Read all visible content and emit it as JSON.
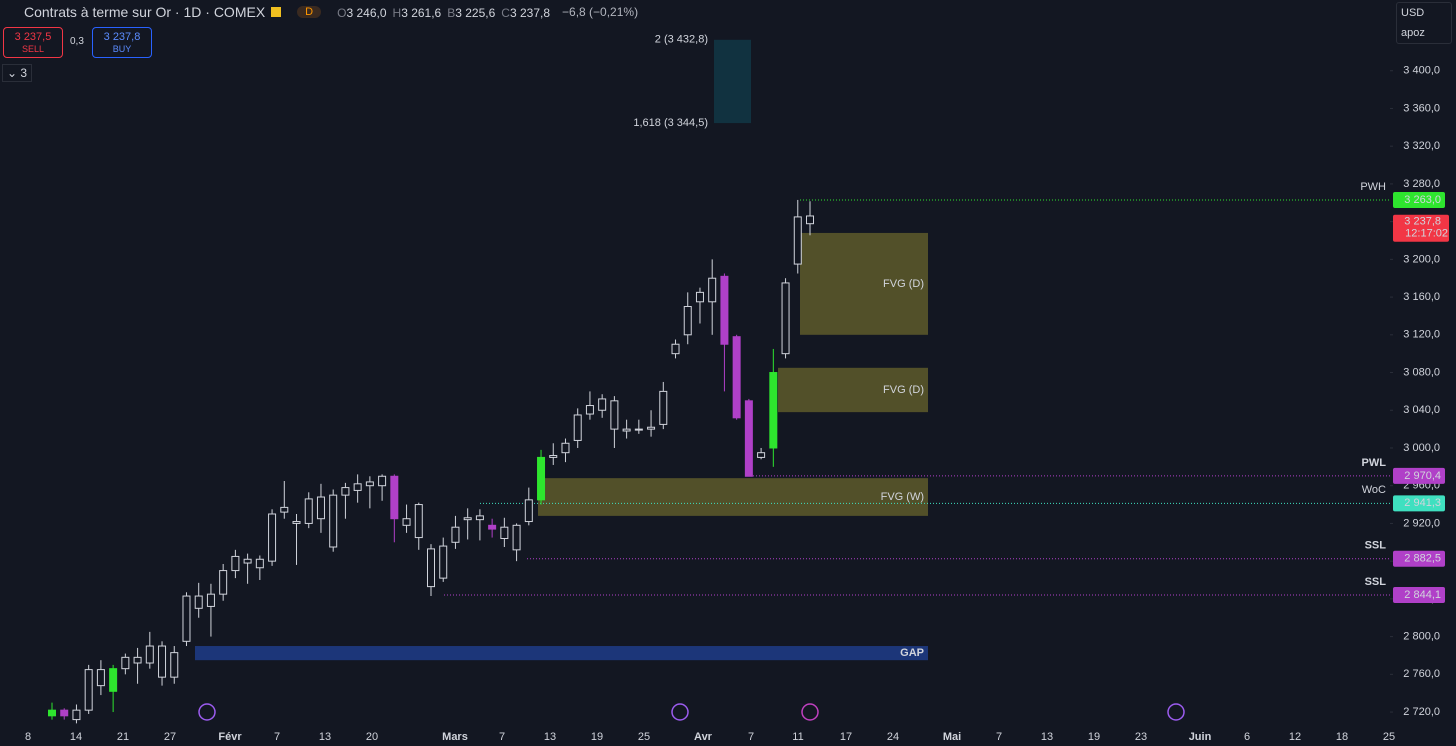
{
  "header": {
    "title": "Contrats à terme sur Or · 1D · COMEX",
    "badge": "D",
    "ohlc": [
      {
        "k": "O",
        "v": "3 246,0"
      },
      {
        "k": "H",
        "v": "3 261,6"
      },
      {
        "k": "B",
        "v": "3 225,6"
      },
      {
        "k": "C",
        "v": "3 237,8"
      }
    ],
    "change": "−6,8 (−0,21%)",
    "sell_price": "3 237,5",
    "sell": "SELL",
    "spread": "0,3",
    "buy_price": "3 237,8",
    "buy": "BUY",
    "indicators": "3",
    "currency": "USD",
    "user": "apoz"
  },
  "chart_data": {
    "type": "candlestick",
    "ylim": [
      2684,
      3475
    ],
    "yticks": [
      {
        "value": 3400,
        "label": "3 400,0"
      },
      {
        "value": 3360,
        "label": "3 360,0"
      },
      {
        "value": 3320,
        "label": "3 320,0"
      },
      {
        "value": 3280,
        "label": "3 280,0"
      },
      {
        "value": 3240,
        "label": "3 240,0"
      },
      {
        "value": 3200,
        "label": "3 200,0"
      },
      {
        "value": 3160,
        "label": "3 160,0"
      },
      {
        "value": 3120,
        "label": "3 120,0"
      },
      {
        "value": 3080,
        "label": "3 080,0"
      },
      {
        "value": 3040,
        "label": "3 040,0"
      },
      {
        "value": 3000,
        "label": "3 000,0"
      },
      {
        "value": 2960,
        "label": "2 960,0"
      },
      {
        "value": 2920,
        "label": "2 920,0"
      },
      {
        "value": 2880,
        "label": "2 880,0"
      },
      {
        "value": 2840,
        "label": "2 840,0"
      },
      {
        "value": 2800,
        "label": "2 800,0"
      },
      {
        "value": 2760,
        "label": "2 760,0"
      },
      {
        "value": 2720,
        "label": "2 720,0"
      }
    ],
    "categories": [
      "8",
      "14",
      "21",
      "27",
      "Févr",
      "7",
      "13",
      "20",
      "Mars",
      "7",
      "13",
      "19",
      "25",
      "Avr",
      "7",
      "11",
      "17",
      "24",
      "Mai",
      "7",
      "13",
      "19",
      "23",
      "Juin",
      "6",
      "12",
      "18",
      "25"
    ],
    "candles": {
      "open": [
        2716,
        2722,
        2712,
        2722,
        2765,
        2742,
        2766,
        2778,
        2772,
        2790,
        2757,
        2795,
        2843,
        2832,
        2845,
        2870,
        2878,
        2873,
        2880,
        2932,
        2920,
        2920,
        2948,
        2895,
        2950,
        2955,
        2960,
        2960,
        2970,
        2925,
        2940,
        2893,
        2862,
        2900,
        2926,
        2924,
        2918,
        2916,
        2892,
        2922,
        2945,
        2990,
        2995,
        3008,
        3036,
        3040,
        3050,
        3018,
        3020,
        3020,
        3025,
        3100,
        3120,
        3155,
        3155,
        3182,
        3118,
        3050,
        2990,
        3000,
        3100,
        3195,
        3246
      ],
      "high": [
        2730,
        2724,
        2728,
        2770,
        2775,
        2770,
        2782,
        2788,
        2805,
        2795,
        2790,
        2847,
        2857,
        2856,
        2877,
        2892,
        2888,
        2886,
        2935,
        2965,
        2930,
        2953,
        2962,
        2956,
        2963,
        2972,
        2970,
        2972,
        2972,
        2940,
        2942,
        2898,
        2905,
        2928,
        2936,
        2935,
        2925,
        2926,
        2920,
        2958,
        2998,
        3005,
        3010,
        3042,
        3060,
        3057,
        3055,
        3030,
        3030,
        3040,
        3070,
        3115,
        3165,
        3170,
        3200,
        3185,
        3120,
        3052,
        3000,
        3105,
        3180,
        3263,
        3261.6
      ],
      "low": [
        2712,
        2712,
        2708,
        2718,
        2738,
        2720,
        2760,
        2750,
        2766,
        2748,
        2750,
        2790,
        2820,
        2800,
        2838,
        2862,
        2856,
        2860,
        2875,
        2925,
        2876,
        2915,
        2910,
        2890,
        2925,
        2942,
        2936,
        2944,
        2900,
        2910,
        2892,
        2843,
        2858,
        2893,
        2903,
        2902,
        2905,
        2895,
        2880,
        2918,
        2940,
        2982,
        2985,
        3000,
        3030,
        3032,
        3000,
        3010,
        3015,
        3012,
        3020,
        3095,
        3110,
        3132,
        3120,
        3060,
        3030,
        2970,
        2988,
        2980,
        3095,
        3185,
        3225.6
      ],
      "close": [
        2722,
        2716,
        2722,
        2765,
        2748,
        2766,
        2778,
        2772,
        2790,
        2757,
        2783,
        2843,
        2830,
        2845,
        2870,
        2885,
        2882,
        2882,
        2930,
        2937,
        2922,
        2946,
        2925,
        2950,
        2958,
        2962,
        2964,
        2970,
        2925,
        2918,
        2905,
        2853,
        2896,
        2916,
        2924,
        2928,
        2914,
        2904,
        2918,
        2945,
        2990,
        2992,
        3005,
        3035,
        3045,
        3052,
        3020,
        3020,
        3020,
        3022,
        3060,
        3110,
        3150,
        3165,
        3180,
        3110,
        3032,
        2970,
        2995,
        3080,
        3175,
        3245,
        3237.8
      ],
      "colors": [
        "#2ee52e",
        "#b040c8",
        "#131722",
        "#131722",
        "#131722",
        "#2ee52e",
        "#131722",
        "#131722",
        "#131722",
        "#131722",
        "#131722",
        "#131722",
        "#131722",
        "#131722",
        "#131722",
        "#131722",
        "#131722",
        "#131722",
        "#131722",
        "#131722",
        "#131722",
        "#131722",
        "#131722",
        "#131722",
        "#131722",
        "#131722",
        "#131722",
        "#131722",
        "#b040c8",
        "#131722",
        "#131722",
        "#131722",
        "#131722",
        "#131722",
        "#131722",
        "#131722",
        "#b040c8",
        "#131722",
        "#131722",
        "#131722",
        "#2ee52e",
        "#131722",
        "#131722",
        "#131722",
        "#131722",
        "#131722",
        "#131722",
        "#131722",
        "#131722",
        "#131722",
        "#131722",
        "#131722",
        "#131722",
        "#131722",
        "#131722",
        "#b040c8",
        "#b040c8",
        "#b040c8",
        "#131722",
        "#2ee52e",
        "#131722",
        "#131722",
        "#131722"
      ]
    },
    "zones": [
      {
        "label": "FVG (D)",
        "high": 3228,
        "low": 3120,
        "color": "#5e5a2a"
      },
      {
        "label": "FVG (D)",
        "high": 3085,
        "low": 3038,
        "color": "#5e5a2a"
      },
      {
        "label": "FVG (W)",
        "high": 2968,
        "low": 2928,
        "color": "#5e5a2a"
      },
      {
        "label": "GAP",
        "high": 2790,
        "low": 2775,
        "color": "#1f3c88"
      }
    ],
    "fib": [
      {
        "label": "2 (3 432,8)",
        "value": 3432.8
      },
      {
        "label": "1,618 (3 344,5)",
        "value": 3344.5
      }
    ],
    "levels": [
      {
        "name": "PWH",
        "value": 3263,
        "label": "3 263,0",
        "color": "#2ee52e"
      },
      {
        "name": "PWL",
        "value": 2970.4,
        "label": "2 970,4",
        "color": "#b040c8"
      },
      {
        "name": "WoC",
        "value": 2941.3,
        "label": "2 941,3",
        "color": "#3fe0c0"
      },
      {
        "name": "SSL",
        "value": 2882.5,
        "label": "2 882,5",
        "color": "#b040c8"
      },
      {
        "name": "SSL",
        "value": 2844.1,
        "label": "2 844,1",
        "color": "#b040c8"
      }
    ],
    "last": {
      "value": 3237.8,
      "label": "3 237,8",
      "countdown": "12:17:02"
    }
  }
}
